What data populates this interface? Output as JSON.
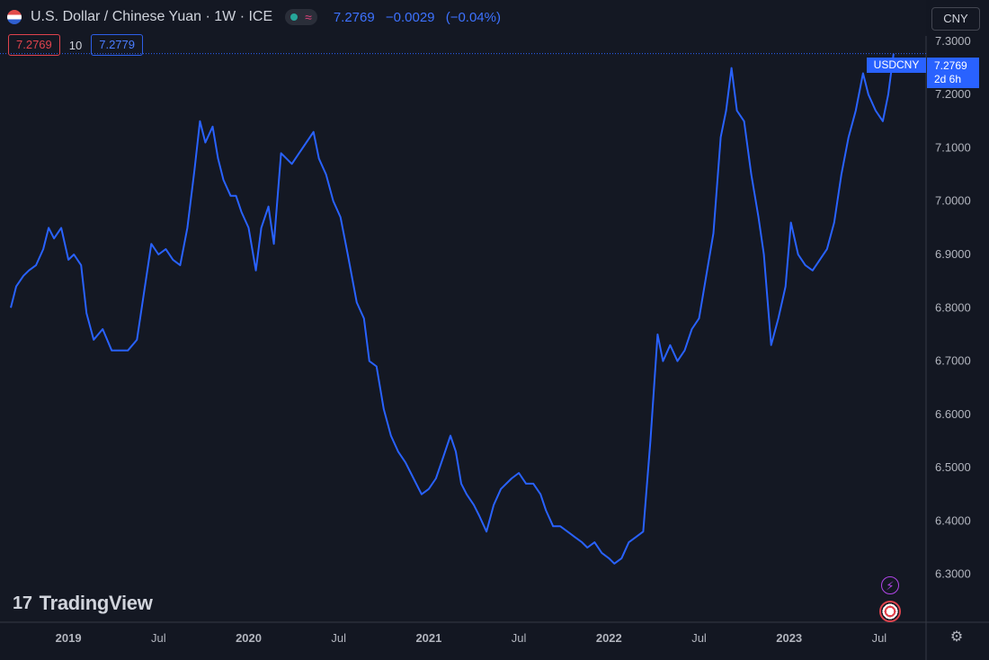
{
  "header": {
    "flag_icon": "us-cn-flag-icon",
    "title": "U.S. Dollar / Chinese Yuan · 1W · ICE",
    "status_icon": "market-open-dot-icon",
    "status_wave_icon": "wave-icon",
    "status_wave_glyph": "≈",
    "last": "7.2769",
    "change": "−0.0029",
    "change_pct": "(−0.04%)"
  },
  "order": {
    "bid": "7.2769",
    "spread": "10",
    "ask": "7.2779"
  },
  "currency_button": "CNY",
  "price_tag": {
    "symbol": "USDCNY",
    "price": "7.2769",
    "countdown": "2d 6h"
  },
  "logo": {
    "mark": "17",
    "text": "TradingView"
  },
  "icons": {
    "alert": "lightning-icon",
    "alert_glyph": "⚡",
    "flag": "us-flag-icon",
    "settings": "gear-icon",
    "settings_glyph": "⚙"
  },
  "colors": {
    "background": "#131722",
    "line": "#2962ff",
    "grid": "#1c2030",
    "negative": "#e0434d",
    "axis_text": "#b2b5be"
  },
  "chart_data": {
    "type": "line",
    "series": [
      {
        "values": [
          [
            2018.68,
            6.8
          ],
          [
            2018.71,
            6.84
          ],
          [
            2018.75,
            6.86
          ],
          [
            2018.78,
            6.87
          ],
          [
            2018.82,
            6.88
          ],
          [
            2018.86,
            6.91
          ],
          [
            2018.89,
            6.95
          ],
          [
            2018.92,
            6.93
          ],
          [
            2018.96,
            6.95
          ],
          [
            2019.0,
            6.89
          ],
          [
            2019.03,
            6.9
          ],
          [
            2019.07,
            6.88
          ],
          [
            2019.1,
            6.79
          ],
          [
            2019.14,
            6.74
          ],
          [
            2019.19,
            6.76
          ],
          [
            2019.24,
            6.72
          ],
          [
            2019.28,
            6.72
          ],
          [
            2019.33,
            6.72
          ],
          [
            2019.38,
            6.74
          ],
          [
            2019.42,
            6.83
          ],
          [
            2019.46,
            6.92
          ],
          [
            2019.5,
            6.9
          ],
          [
            2019.54,
            6.91
          ],
          [
            2019.58,
            6.89
          ],
          [
            2019.62,
            6.88
          ],
          [
            2019.66,
            6.95
          ],
          [
            2019.7,
            7.06
          ],
          [
            2019.73,
            7.15
          ],
          [
            2019.76,
            7.11
          ],
          [
            2019.8,
            7.14
          ],
          [
            2019.83,
            7.08
          ],
          [
            2019.86,
            7.04
          ],
          [
            2019.9,
            7.01
          ],
          [
            2019.93,
            7.01
          ],
          [
            2019.96,
            6.98
          ],
          [
            2020.0,
            6.95
          ],
          [
            2020.04,
            6.87
          ],
          [
            2020.07,
            6.95
          ],
          [
            2020.11,
            6.99
          ],
          [
            2020.14,
            6.92
          ],
          [
            2020.18,
            7.09
          ],
          [
            2020.21,
            7.08
          ],
          [
            2020.24,
            7.07
          ],
          [
            2020.28,
            7.09
          ],
          [
            2020.32,
            7.11
          ],
          [
            2020.36,
            7.13
          ],
          [
            2020.39,
            7.08
          ],
          [
            2020.43,
            7.05
          ],
          [
            2020.47,
            7.0
          ],
          [
            2020.51,
            6.97
          ],
          [
            2020.55,
            6.9
          ],
          [
            2020.6,
            6.81
          ],
          [
            2020.64,
            6.78
          ],
          [
            2020.67,
            6.7
          ],
          [
            2020.71,
            6.69
          ],
          [
            2020.75,
            6.61
          ],
          [
            2020.79,
            6.56
          ],
          [
            2020.83,
            6.53
          ],
          [
            2020.87,
            6.51
          ],
          [
            2020.9,
            6.49
          ],
          [
            2020.93,
            6.47
          ],
          [
            2020.96,
            6.45
          ],
          [
            2021.0,
            6.46
          ],
          [
            2021.04,
            6.48
          ],
          [
            2021.08,
            6.52
          ],
          [
            2021.12,
            6.56
          ],
          [
            2021.15,
            6.53
          ],
          [
            2021.18,
            6.47
          ],
          [
            2021.21,
            6.45
          ],
          [
            2021.25,
            6.43
          ],
          [
            2021.28,
            6.41
          ],
          [
            2021.32,
            6.38
          ],
          [
            2021.36,
            6.43
          ],
          [
            2021.4,
            6.46
          ],
          [
            2021.43,
            6.47
          ],
          [
            2021.46,
            6.48
          ],
          [
            2021.5,
            6.49
          ],
          [
            2021.54,
            6.47
          ],
          [
            2021.58,
            6.47
          ],
          [
            2021.62,
            6.45
          ],
          [
            2021.65,
            6.42
          ],
          [
            2021.69,
            6.39
          ],
          [
            2021.73,
            6.39
          ],
          [
            2021.77,
            6.38
          ],
          [
            2021.81,
            6.37
          ],
          [
            2021.85,
            6.36
          ],
          [
            2021.88,
            6.35
          ],
          [
            2021.92,
            6.36
          ],
          [
            2021.96,
            6.34
          ],
          [
            2022.0,
            6.33
          ],
          [
            2022.03,
            6.32
          ],
          [
            2022.07,
            6.33
          ],
          [
            2022.11,
            6.36
          ],
          [
            2022.15,
            6.37
          ],
          [
            2022.19,
            6.38
          ],
          [
            2022.23,
            6.55
          ],
          [
            2022.27,
            6.75
          ],
          [
            2022.3,
            6.7
          ],
          [
            2022.34,
            6.73
          ],
          [
            2022.38,
            6.7
          ],
          [
            2022.42,
            6.72
          ],
          [
            2022.46,
            6.76
          ],
          [
            2022.5,
            6.78
          ],
          [
            2022.54,
            6.86
          ],
          [
            2022.58,
            6.94
          ],
          [
            2022.62,
            7.12
          ],
          [
            2022.65,
            7.17
          ],
          [
            2022.68,
            7.25
          ],
          [
            2022.71,
            7.17
          ],
          [
            2022.75,
            7.15
          ],
          [
            2022.79,
            7.05
          ],
          [
            2022.83,
            6.97
          ],
          [
            2022.86,
            6.9
          ],
          [
            2022.9,
            6.73
          ],
          [
            2022.94,
            6.78
          ],
          [
            2022.98,
            6.84
          ],
          [
            2023.01,
            6.96
          ],
          [
            2023.05,
            6.9
          ],
          [
            2023.09,
            6.88
          ],
          [
            2023.13,
            6.87
          ],
          [
            2023.17,
            6.89
          ],
          [
            2023.21,
            6.91
          ],
          [
            2023.25,
            6.96
          ],
          [
            2023.29,
            7.05
          ],
          [
            2023.33,
            7.12
          ],
          [
            2023.37,
            7.17
          ],
          [
            2023.41,
            7.24
          ],
          [
            2023.44,
            7.2
          ],
          [
            2023.48,
            7.17
          ],
          [
            2023.52,
            7.15
          ],
          [
            2023.55,
            7.2
          ],
          [
            2023.58,
            7.2769
          ]
        ]
      }
    ],
    "y_ticks": [
      "7.3000",
      "7.2000",
      "7.1000",
      "7.0000",
      "6.9000",
      "6.8000",
      "6.7000",
      "6.6000",
      "6.5000",
      "6.4000",
      "6.3000"
    ],
    "x_ticks": [
      {
        "label": "2019",
        "x": 2019.0
      },
      {
        "label": "Jul",
        "x": 2019.5
      },
      {
        "label": "2020",
        "x": 2020.0
      },
      {
        "label": "Jul",
        "x": 2020.5
      },
      {
        "label": "2021",
        "x": 2021.0
      },
      {
        "label": "Jul",
        "x": 2021.5
      },
      {
        "label": "2022",
        "x": 2022.0
      },
      {
        "label": "Jul",
        "x": 2022.5
      },
      {
        "label": "2023",
        "x": 2023.0
      },
      {
        "label": "Jul",
        "x": 2023.5
      }
    ],
    "xlim": [
      2018.62,
      2023.76
    ],
    "ylim": [
      6.21,
      7.31
    ],
    "last_price": 7.2769,
    "grid": false
  }
}
